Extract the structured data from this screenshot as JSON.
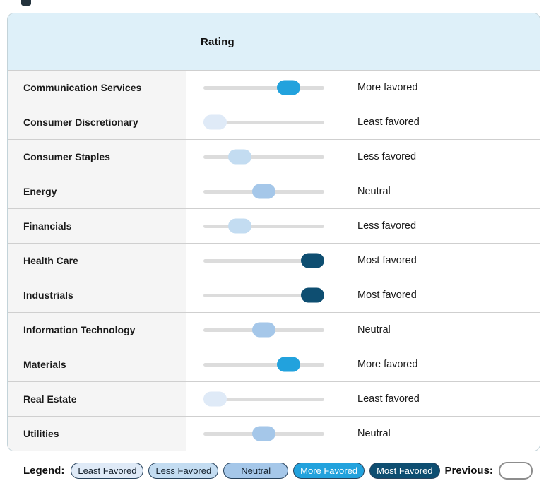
{
  "table": {
    "header": {
      "rating_label": "Rating"
    },
    "rows": [
      {
        "sector": "Communication Services",
        "rating": "More favored",
        "level": 4
      },
      {
        "sector": "Consumer Discretionary",
        "rating": "Least favored",
        "level": 1
      },
      {
        "sector": "Consumer Staples",
        "rating": "Less favored",
        "level": 2
      },
      {
        "sector": "Energy",
        "rating": "Neutral",
        "level": 3
      },
      {
        "sector": "Financials",
        "rating": "Less favored",
        "level": 2
      },
      {
        "sector": "Health Care",
        "rating": "Most favored",
        "level": 5
      },
      {
        "sector": "Industrials",
        "rating": "Most favored",
        "level": 5
      },
      {
        "sector": "Information Technology",
        "rating": "Neutral",
        "level": 3
      },
      {
        "sector": "Materials",
        "rating": "More favored",
        "level": 4
      },
      {
        "sector": "Real Estate",
        "rating": "Least favored",
        "level": 1
      },
      {
        "sector": "Utilities",
        "rating": "Neutral",
        "level": 3
      }
    ]
  },
  "legend": {
    "label": "Legend:",
    "items": [
      {
        "label": "Least Favored",
        "level": 1
      },
      {
        "label": "Less Favored",
        "level": 2
      },
      {
        "label": "Neutral",
        "level": 3
      },
      {
        "label": "More Favored",
        "level": 4
      },
      {
        "label": "Most Favored",
        "level": 5
      }
    ],
    "previous_label": "Previous:"
  },
  "colors": {
    "level1": "#dfeaf7",
    "level2": "#c3dcf1",
    "level3": "#a5c7e9",
    "level4": "#22a2dd",
    "level5": "#0e4e71",
    "track": "#dcdcdc",
    "header_bg": "#def0f9",
    "pill_border": "#27425c",
    "light_pill_text": "#14202c",
    "dark_pill_text": "#ffffff"
  },
  "chart_data": {
    "type": "table",
    "title": "Rating",
    "scale": [
      "Least Favored",
      "Less Favored",
      "Neutral",
      "More Favored",
      "Most Favored"
    ],
    "scale_levels": [
      1,
      2,
      3,
      4,
      5
    ],
    "rows": [
      {
        "sector": "Communication Services",
        "rating": "More favored",
        "level": 4
      },
      {
        "sector": "Consumer Discretionary",
        "rating": "Least favored",
        "level": 1
      },
      {
        "sector": "Consumer Staples",
        "rating": "Less favored",
        "level": 2
      },
      {
        "sector": "Energy",
        "rating": "Neutral",
        "level": 3
      },
      {
        "sector": "Financials",
        "rating": "Less favored",
        "level": 2
      },
      {
        "sector": "Health Care",
        "rating": "Most favored",
        "level": 5
      },
      {
        "sector": "Industrials",
        "rating": "Most favored",
        "level": 5
      },
      {
        "sector": "Information Technology",
        "rating": "Neutral",
        "level": 3
      },
      {
        "sector": "Materials",
        "rating": "More favored",
        "level": 4
      },
      {
        "sector": "Real Estate",
        "rating": "Least favored",
        "level": 1
      },
      {
        "sector": "Utilities",
        "rating": "Neutral",
        "level": 3
      }
    ],
    "legend_position": "bottom"
  }
}
